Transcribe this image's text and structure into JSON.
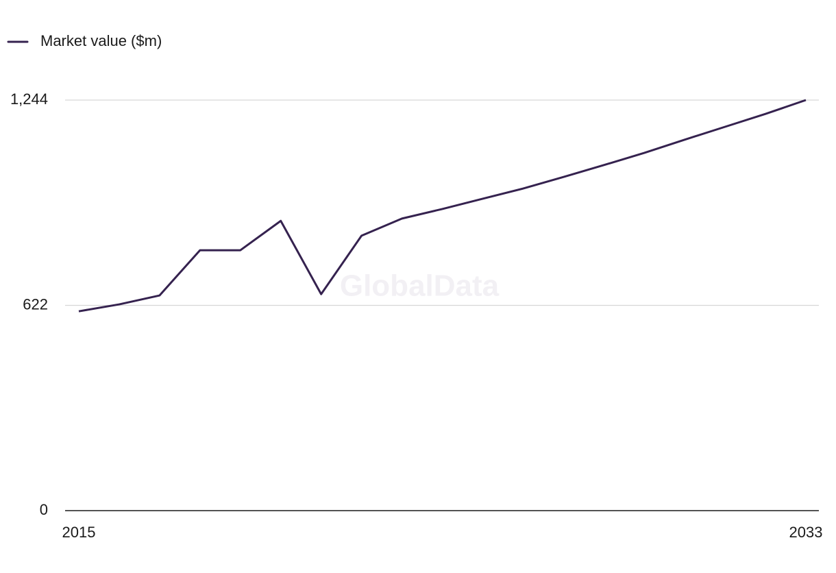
{
  "chart_data": {
    "type": "line",
    "legend": "top-left",
    "watermark": "GlobalData",
    "x": [
      2015,
      2016,
      2017,
      2018,
      2019,
      2020,
      2021,
      2022,
      2023,
      2024,
      2025,
      2026,
      2027,
      2028,
      2029,
      2030,
      2031,
      2032,
      2033
    ],
    "xlim": [
      2015,
      2033
    ],
    "xticks": [
      2015,
      2033
    ],
    "ylim": [
      0,
      1244
    ],
    "yticks": [
      0,
      622,
      {
        "value": 1244,
        "label": "1,244"
      }
    ],
    "grid": true,
    "series": [
      {
        "name": "Market value ($m)",
        "color": "#35224f",
        "values": [
          604,
          625,
          652,
          789,
          789,
          878,
          656,
          833,
          885,
          914,
          945,
          976,
          1011,
          1047,
          1084,
          1124,
          1163,
          1202,
          1244
        ]
      }
    ]
  }
}
